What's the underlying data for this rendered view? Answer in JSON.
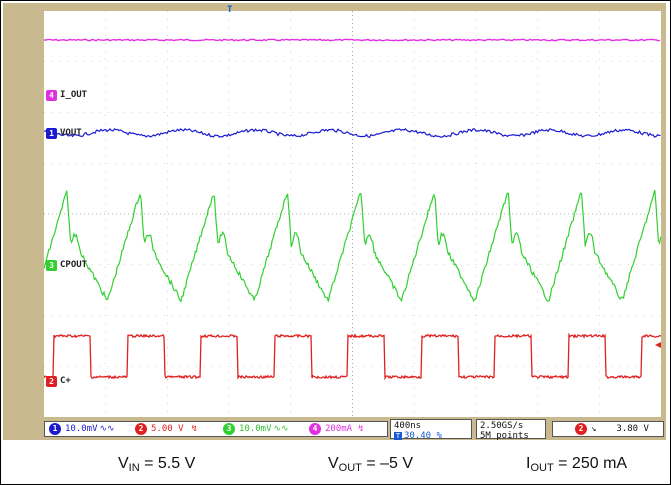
{
  "trigger_marker": "T",
  "channels": {
    "ch4": {
      "badge": "4",
      "label": "I_OUT",
      "color": "#e030e0",
      "scale": "200mA"
    },
    "ch1": {
      "badge": "1",
      "label": "VOUT",
      "color": "#1a1ad0",
      "scale": "10.0mV"
    },
    "ch3": {
      "badge": "3",
      "label": "CPOUT",
      "color": "#30d030",
      "scale": "10.0mV"
    },
    "ch2": {
      "badge": "2",
      "label": "C+",
      "color": "#e02020",
      "scale": "5.00 V"
    }
  },
  "timebase": {
    "value": "400ns",
    "position": "30.40 %"
  },
  "sampling": {
    "rate": "2.50GS/s",
    "points": "5M points"
  },
  "trigger": {
    "channel": "2",
    "level": "3.80 V"
  },
  "captions": {
    "vin_main": "V",
    "vin_sub": "IN",
    "vin_value": " = 5.5 V",
    "vout_main": "V",
    "vout_sub": "OUT",
    "vout_value": " = –5 V",
    "iout_main": "I",
    "iout_sub": "OUT",
    "iout_value": " = 250 mA"
  },
  "colors": {
    "bezel": "#c9b98f",
    "grid": "#b0b0b0"
  }
}
